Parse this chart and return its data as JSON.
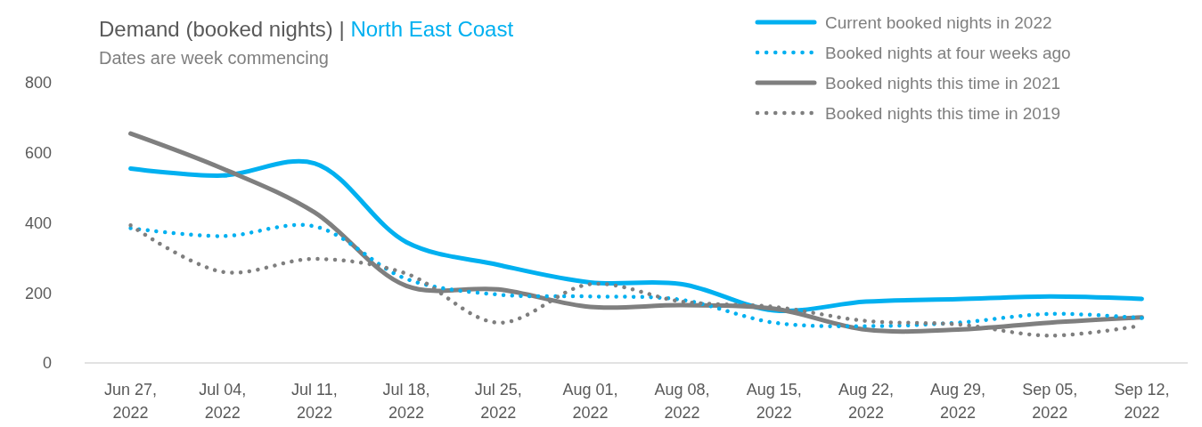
{
  "chart_data": {
    "type": "line",
    "title": "Demand (booked nights) | North East Coast",
    "subtitle": "Dates are week commencing",
    "categories": [
      "Jun 27, 2022",
      "Jul 04, 2022",
      "Jul 11, 2022",
      "Jul 18, 2022",
      "Jul 25, 2022",
      "Aug 01, 2022",
      "Aug 08, 2022",
      "Aug 15, 2022",
      "Aug 22, 2022",
      "Aug 29, 2022",
      "Sep 05, 2022",
      "Sep 12, 2022"
    ],
    "series": [
      {
        "name": "Current booked nights in 2022",
        "color": "#00b0f0",
        "line_style": "solid",
        "values": [
          555,
          535,
          570,
          345,
          280,
          230,
          225,
          150,
          175,
          182,
          190,
          183
        ]
      },
      {
        "name": "Booked nights at four weeks ago",
        "color": "#00b0f0",
        "line_style": "dotted",
        "values": [
          385,
          362,
          390,
          240,
          195,
          190,
          180,
          115,
          105,
          115,
          140,
          128
        ]
      },
      {
        "name": "Booked nights this time in 2021",
        "color": "#7f7f7f",
        "line_style": "solid",
        "values": [
          655,
          555,
          430,
          220,
          210,
          160,
          165,
          155,
          95,
          95,
          115,
          130
        ]
      },
      {
        "name": "Booked nights this time in 2019",
        "color": "#7f7f7f",
        "line_style": "dotted",
        "values": [
          393,
          260,
          297,
          255,
          115,
          225,
          175,
          160,
          120,
          110,
          78,
          107
        ]
      }
    ],
    "ylim": [
      0,
      800
    ],
    "yticks": [
      0,
      200,
      400,
      600,
      800
    ],
    "grid": false,
    "legend": "top right",
    "marker": "none"
  }
}
